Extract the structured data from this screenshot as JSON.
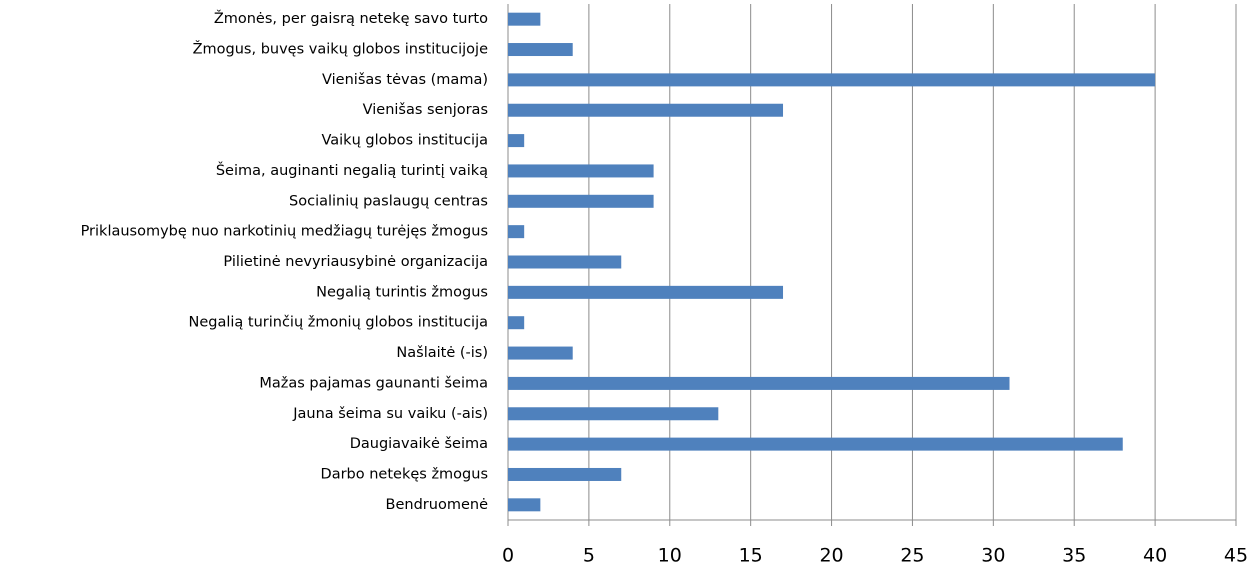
{
  "chart_data": {
    "type": "barh",
    "categories": [
      "Žmonės, per gaisrą netekę savo turto",
      "Žmogus, buvęs vaikų globos institucijoje",
      "Vienišas tėvas (mama)",
      "Vienišas senjoras",
      "Vaikų globos institucija",
      "Šeima, auginanti negalią turintį vaiką",
      "Socialinių paslaugų centras",
      "Priklausomybę nuo narkotinių medžiagų turėjęs žmogus",
      "Pilietinė nevyriausybinė organizacija",
      "Negalią turintis žmogus",
      "Negalią turinčių žmonių globos institucija",
      "Našlaitė (-is)",
      "Mažas pajamas gaunanti šeima",
      "Jauna šeima su vaiku (-ais)",
      "Daugiavaikė šeima",
      "Darbo netekęs žmogus",
      "Bendruomenė"
    ],
    "values": [
      2,
      4,
      40,
      17,
      1,
      9,
      9,
      1,
      7,
      17,
      1,
      4,
      31,
      13,
      38,
      7,
      2
    ],
    "color": "#4f81bd",
    "xlim": [
      0,
      45
    ],
    "xticks": [
      0,
      5,
      10,
      15,
      20,
      25,
      30,
      35,
      40,
      45
    ],
    "grid": true
  }
}
